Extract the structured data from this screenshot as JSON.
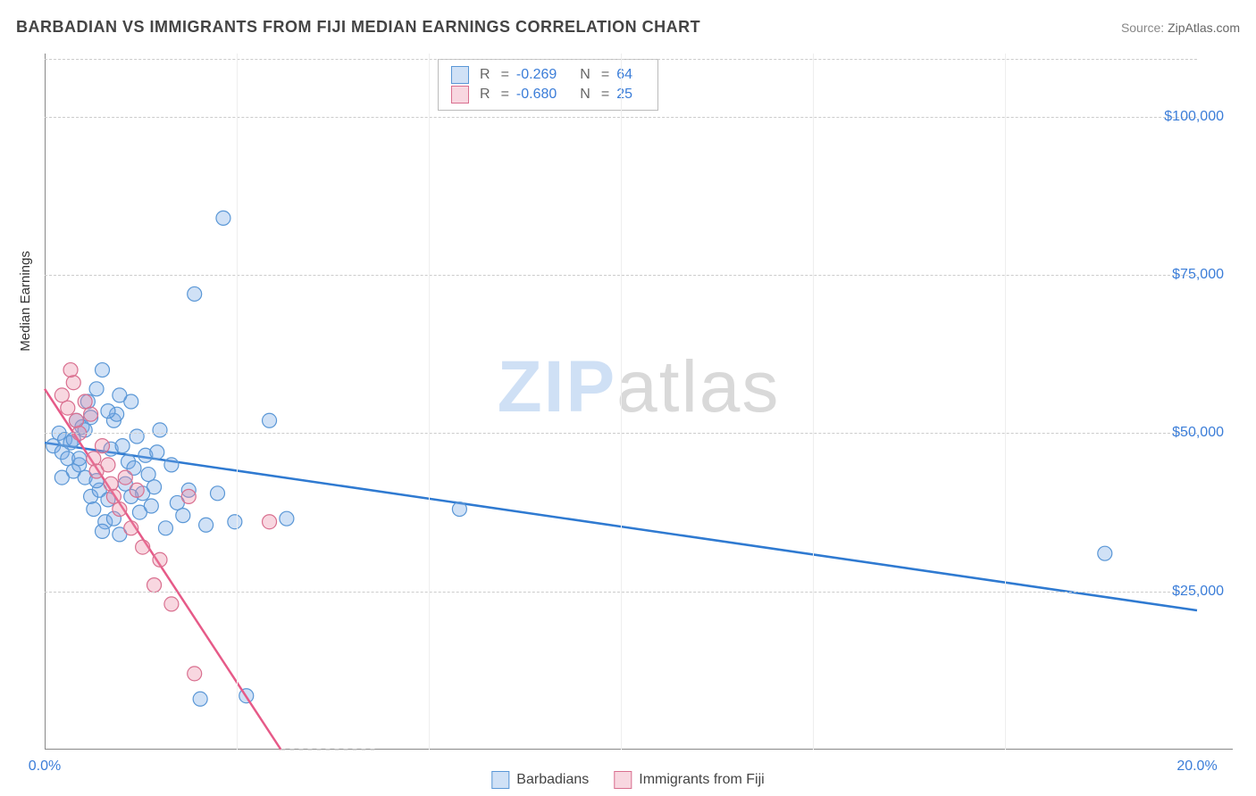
{
  "title": "BARBADIAN VS IMMIGRANTS FROM FIJI MEDIAN EARNINGS CORRELATION CHART",
  "source_label": "Source:",
  "source_value": "ZipAtlas.com",
  "watermark": {
    "part1": "ZIP",
    "part2": "atlas"
  },
  "ylabel": "Median Earnings",
  "chart": {
    "type": "scatter",
    "xlim": [
      0,
      20
    ],
    "ylim": [
      0,
      110000
    ],
    "x_ticks_visible": [
      {
        "v": 0,
        "label": "0.0%"
      },
      {
        "v": 20,
        "label": "20.0%"
      }
    ],
    "x_ticks_minor": [
      3.33,
      6.67,
      10,
      13.33,
      16.67
    ],
    "y_ticks": [
      {
        "v": 25000,
        "label": "$25,000"
      },
      {
        "v": 50000,
        "label": "$50,000"
      },
      {
        "v": 75000,
        "label": "$75,000"
      },
      {
        "v": 100000,
        "label": "$100,000"
      }
    ],
    "grid_color_h": "#cccccc",
    "grid_color_v": "#eeeeee",
    "axis_color": "#888888",
    "marker_radius": 8,
    "marker_stroke_width": 1.2,
    "line_width": 2.5,
    "series": [
      {
        "name": "Barbadians",
        "fill": "rgba(120,170,230,0.35)",
        "stroke": "#5a97d6",
        "line_color": "#2f7ad1",
        "R": "-0.269",
        "N": "64",
        "trend": {
          "x1": 0,
          "y1": 48500,
          "x2": 20,
          "y2": 22000
        },
        "points": [
          [
            0.15,
            48000
          ],
          [
            0.25,
            50000
          ],
          [
            0.3,
            47000
          ],
          [
            0.35,
            49000
          ],
          [
            0.4,
            46000
          ],
          [
            0.45,
            48500
          ],
          [
            0.5,
            44000
          ],
          [
            0.55,
            52000
          ],
          [
            0.6,
            45000
          ],
          [
            0.65,
            51000
          ],
          [
            0.7,
            43000
          ],
          [
            0.75,
            55000
          ],
          [
            0.8,
            40000
          ],
          [
            0.85,
            38000
          ],
          [
            0.9,
            57000
          ],
          [
            0.95,
            41000
          ],
          [
            1.0,
            60000
          ],
          [
            1.05,
            36000
          ],
          [
            1.1,
            39500
          ],
          [
            1.15,
            47500
          ],
          [
            1.2,
            52000
          ],
          [
            1.25,
            53000
          ],
          [
            1.3,
            34000
          ],
          [
            1.35,
            48000
          ],
          [
            1.4,
            42000
          ],
          [
            1.45,
            45500
          ],
          [
            1.5,
            55000
          ],
          [
            1.55,
            44500
          ],
          [
            1.6,
            49500
          ],
          [
            1.65,
            37500
          ],
          [
            1.7,
            40500
          ],
          [
            1.75,
            46500
          ],
          [
            1.8,
            43500
          ],
          [
            1.85,
            38500
          ],
          [
            1.9,
            41500
          ],
          [
            1.95,
            47000
          ],
          [
            2.0,
            50500
          ],
          [
            2.1,
            35000
          ],
          [
            2.2,
            45000
          ],
          [
            2.3,
            39000
          ],
          [
            2.4,
            37000
          ],
          [
            2.5,
            41000
          ],
          [
            2.6,
            72000
          ],
          [
            2.7,
            8000
          ],
          [
            2.8,
            35500
          ],
          [
            3.0,
            40500
          ],
          [
            3.1,
            84000
          ],
          [
            3.3,
            36000
          ],
          [
            3.5,
            8500
          ],
          [
            3.9,
            52000
          ],
          [
            4.2,
            36500
          ],
          [
            0.5,
            49000
          ],
          [
            0.7,
            50500
          ],
          [
            0.9,
            42500
          ],
          [
            1.1,
            53500
          ],
          [
            1.3,
            56000
          ],
          [
            1.5,
            40000
          ],
          [
            1.0,
            34500
          ],
          [
            1.2,
            36500
          ],
          [
            7.2,
            38000
          ],
          [
            18.4,
            31000
          ],
          [
            0.3,
            43000
          ],
          [
            0.6,
            46000
          ],
          [
            0.8,
            52500
          ]
        ]
      },
      {
        "name": "Immigrants from Fiji",
        "fill": "rgba(235,140,165,0.35)",
        "stroke": "#d96f8f",
        "line_color": "#e65a88",
        "R": "-0.680",
        "N": "25",
        "trend": {
          "x1": 0,
          "y1": 57000,
          "x2": 4.1,
          "y2": 0
        },
        "dash_extend": {
          "x1": 4.1,
          "y1": 0,
          "x2": 5.8,
          "y2": -23000
        },
        "points": [
          [
            0.3,
            56000
          ],
          [
            0.4,
            54000
          ],
          [
            0.5,
            58000
          ],
          [
            0.55,
            52000
          ],
          [
            0.6,
            50000
          ],
          [
            0.7,
            55000
          ],
          [
            0.8,
            53000
          ],
          [
            0.85,
            46000
          ],
          [
            0.9,
            44000
          ],
          [
            1.0,
            48000
          ],
          [
            1.1,
            45000
          ],
          [
            1.15,
            42000
          ],
          [
            1.2,
            40000
          ],
          [
            1.3,
            38000
          ],
          [
            1.4,
            43000
          ],
          [
            1.5,
            35000
          ],
          [
            1.6,
            41000
          ],
          [
            1.7,
            32000
          ],
          [
            1.9,
            26000
          ],
          [
            2.0,
            30000
          ],
          [
            2.2,
            23000
          ],
          [
            2.5,
            40000
          ],
          [
            2.6,
            12000
          ],
          [
            3.9,
            36000
          ],
          [
            0.45,
            60000
          ]
        ]
      }
    ]
  },
  "legend": {
    "items": [
      {
        "label": "Barbadians",
        "fill": "rgba(120,170,230,0.35)",
        "stroke": "#5a97d6"
      },
      {
        "label": "Immigrants from Fiji",
        "fill": "rgba(235,140,165,0.35)",
        "stroke": "#d96f8f"
      }
    ]
  },
  "stats_labels": {
    "R": "R",
    "N": "N",
    "eq": "="
  }
}
